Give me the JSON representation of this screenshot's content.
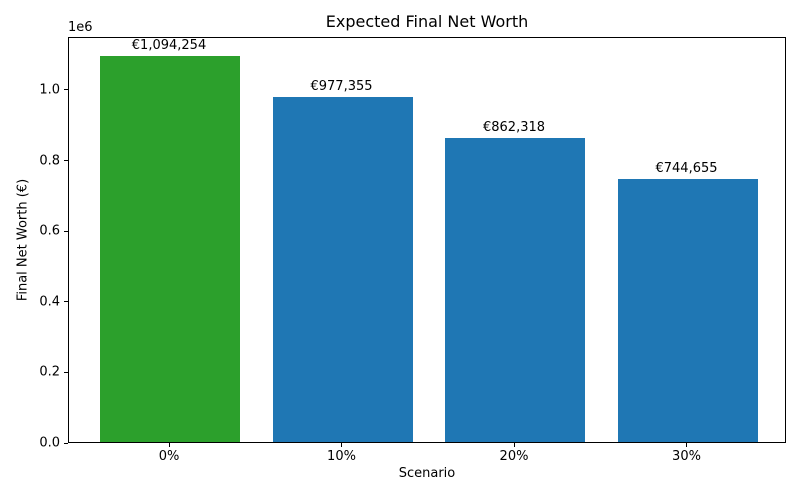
{
  "chart_data": {
    "type": "bar",
    "title": "Expected Final Net Worth",
    "xlabel": "Scenario",
    "ylabel": "Final Net Worth (€)",
    "offset_text": "1e6",
    "categories": [
      "0%",
      "10%",
      "20%",
      "30%"
    ],
    "values": [
      1094254,
      977355,
      862318,
      744655
    ],
    "bar_value_labels": [
      "€1,094,254",
      "€977,355",
      "€862,318",
      "€744,655"
    ],
    "bar_colors": [
      "#2ca02c",
      "#1f77b4",
      "#1f77b4",
      "#1f77b4"
    ],
    "ylim": [
      0,
      1150000
    ],
    "ytick_values": [
      0,
      200000,
      400000,
      600000,
      800000,
      1000000
    ],
    "ytick_labels": [
      "0.0",
      "0.2",
      "0.4",
      "0.6",
      "0.8",
      "1.0"
    ],
    "grid": false,
    "legend": "none",
    "highlight_color": "#2ca02c",
    "default_bar_color": "#1f77b4"
  }
}
